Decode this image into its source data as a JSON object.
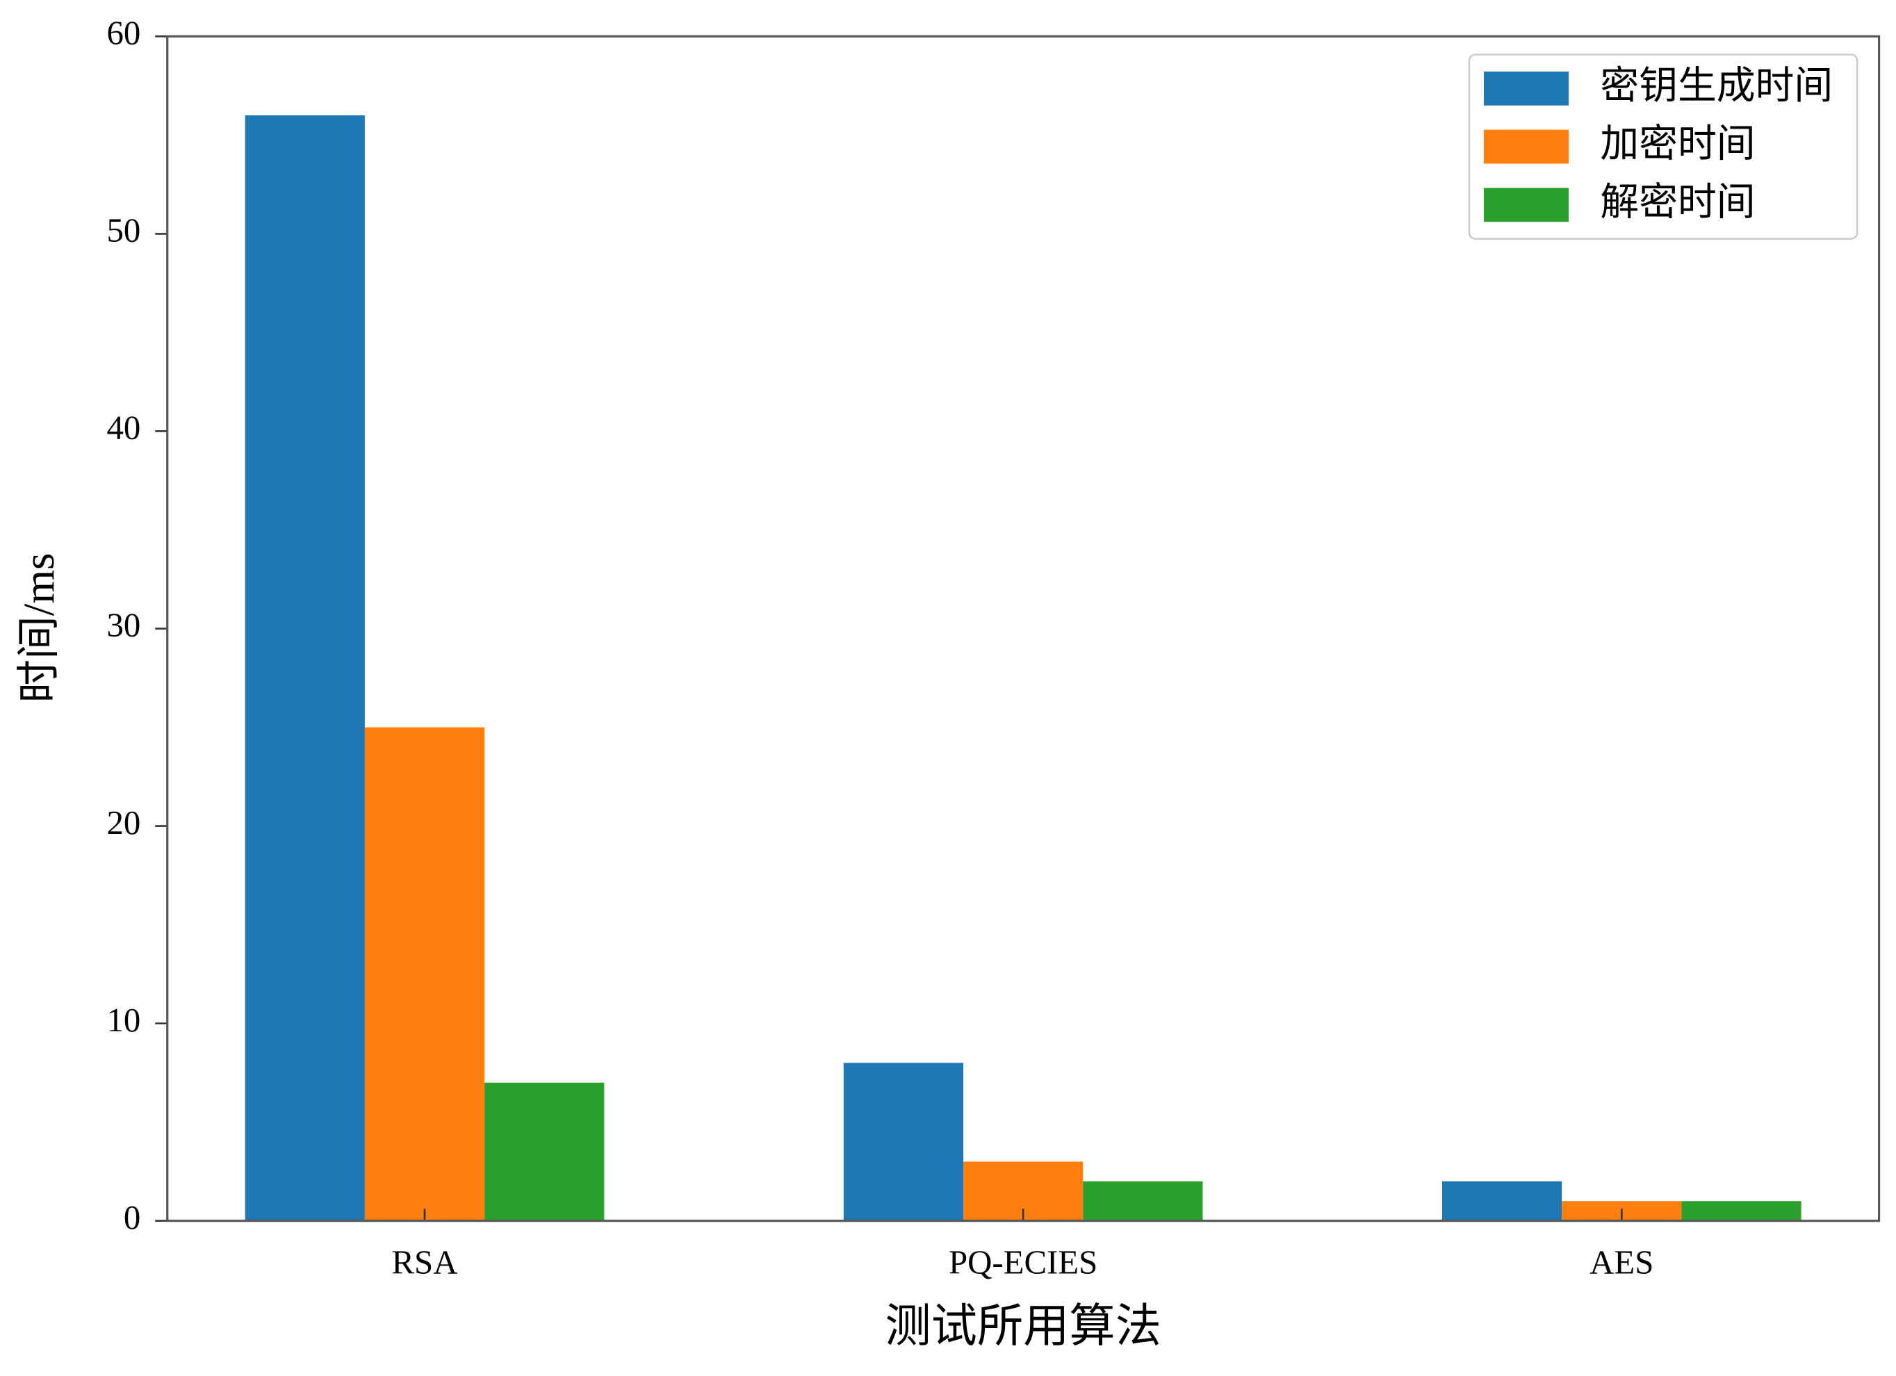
{
  "chart_data": {
    "type": "bar",
    "xlabel": "测试所用算法",
    "ylabel": "时间/ms",
    "categories": [
      "RSA",
      "PQ-ECIES",
      "AES"
    ],
    "series": [
      {
        "name": "密钥生成时间",
        "color": "#1f77b4",
        "values": [
          56,
          8,
          2
        ]
      },
      {
        "name": "加密时间",
        "color": "#ff7f0e",
        "values": [
          25,
          3,
          1
        ]
      },
      {
        "name": "解密时间",
        "color": "#2ca02c",
        "values": [
          7,
          2,
          1
        ]
      }
    ],
    "ylim": [
      0,
      60
    ],
    "yticks": [
      0,
      10,
      20,
      30,
      40,
      50,
      60
    ],
    "grid": false,
    "legend": "upper right"
  }
}
